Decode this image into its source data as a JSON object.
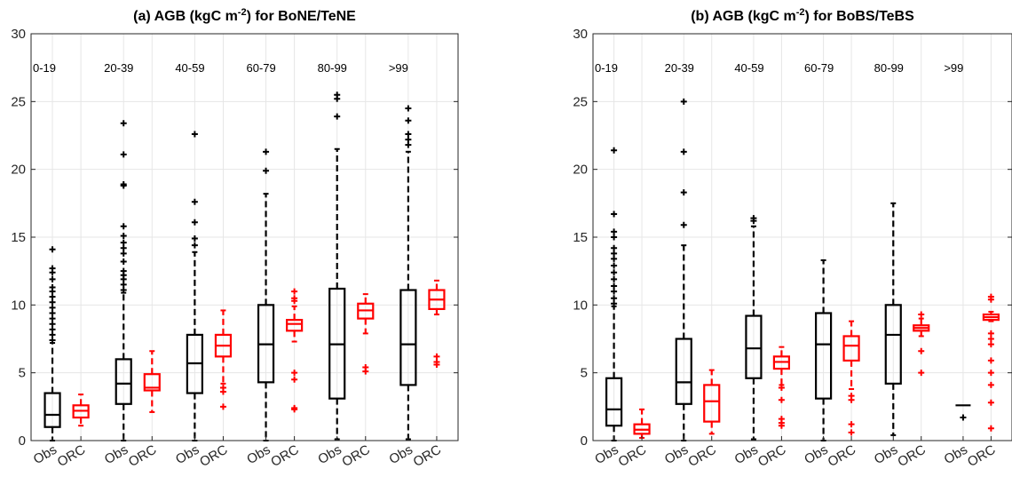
{
  "chart_data": [
    {
      "type": "box",
      "title": "(a) AGB (kgC m-2) for BoNE/TeNE",
      "title_parts": {
        "pre": "(a) AGB (kgC m",
        "sup": "-2",
        "post": ") for BoNE/TeNE"
      },
      "ylim": [
        0,
        30
      ],
      "yticks": [
        0,
        5,
        10,
        15,
        20,
        25,
        30
      ],
      "groups": [
        "0-19",
        "20-39",
        "40-59",
        "60-79",
        "80-99",
        ">99"
      ],
      "series_labels": [
        "Obs",
        "ORC"
      ],
      "grid": true,
      "colors": {
        "Obs": "#000000",
        "ORC": "#ff0000"
      },
      "boxes": [
        {
          "group": "0-19",
          "series": "Obs",
          "min": 0,
          "q1": 1.0,
          "median": 1.9,
          "q3": 3.5,
          "max": 7.2,
          "outliers": [
            7.4,
            7.8,
            8.2,
            8.6,
            9.0,
            9.4,
            9.8,
            10.2,
            10.6,
            11.0,
            11.3,
            11.9,
            12.4,
            12.7,
            14.1
          ]
        },
        {
          "group": "0-19",
          "series": "ORC",
          "min": 1.1,
          "q1": 1.7,
          "median": 2.2,
          "q3": 2.6,
          "max": 3.4,
          "outliers": []
        },
        {
          "group": "20-39",
          "series": "Obs",
          "min": 0,
          "q1": 2.7,
          "median": 4.2,
          "q3": 6.0,
          "max": 10.9,
          "outliers": [
            11.1,
            11.5,
            11.9,
            12.2,
            12.5,
            13.2,
            13.8,
            14.2,
            14.6,
            15.1,
            15.8,
            18.8,
            18.9,
            21.1,
            23.4
          ]
        },
        {
          "group": "20-39",
          "series": "ORC",
          "min": 2.1,
          "q1": 3.7,
          "median": 3.9,
          "q3": 4.9,
          "max": 6.6,
          "outliers": []
        },
        {
          "group": "40-59",
          "series": "Obs",
          "min": 0,
          "q1": 3.5,
          "median": 5.7,
          "q3": 7.8,
          "max": 13.9,
          "outliers": [
            14.4,
            14.9,
            16.1,
            17.6,
            22.6
          ]
        },
        {
          "group": "40-59",
          "series": "ORC",
          "min": 4.2,
          "q1": 6.2,
          "median": 7.0,
          "q3": 7.8,
          "max": 9.6,
          "outliers": [
            2.5,
            3.6,
            3.9
          ]
        },
        {
          "group": "60-79",
          "series": "Obs",
          "min": 0,
          "q1": 4.3,
          "median": 7.1,
          "q3": 10.0,
          "max": 18.2,
          "outliers": [
            19.9,
            21.3
          ]
        },
        {
          "group": "60-79",
          "series": "ORC",
          "min": 7.3,
          "q1": 8.1,
          "median": 8.6,
          "q3": 8.9,
          "max": 9.9,
          "outliers": [
            2.3,
            2.4,
            4.5,
            5.0,
            10.3,
            10.5,
            11.0
          ]
        },
        {
          "group": "80-99",
          "series": "Obs",
          "min": 0.1,
          "q1": 3.1,
          "median": 7.1,
          "q3": 11.2,
          "max": 21.5,
          "outliers": [
            23.9,
            25.2,
            25.5
          ]
        },
        {
          "group": "80-99",
          "series": "ORC",
          "min": 7.9,
          "q1": 9.0,
          "median": 9.6,
          "q3": 10.1,
          "max": 10.8,
          "outliers": [
            5.1,
            5.4
          ]
        },
        {
          "group": ">99",
          "series": "Obs",
          "min": 0.1,
          "q1": 4.1,
          "median": 7.1,
          "q3": 11.1,
          "max": 21.3,
          "outliers": [
            21.8,
            22.2,
            22.6,
            23.6,
            24.5
          ]
        },
        {
          "group": ">99",
          "series": "ORC",
          "min": 9.3,
          "q1": 9.7,
          "median": 10.4,
          "q3": 11.1,
          "max": 11.8,
          "outliers": [
            5.6,
            5.8,
            6.2
          ]
        }
      ]
    },
    {
      "type": "box",
      "title": "(b) AGB (kgC m-2) for BoBS/TeBS",
      "title_parts": {
        "pre": "(b) AGB (kgC m",
        "sup": "-2",
        "post": ") for BoBS/TeBS"
      },
      "ylim": [
        0,
        30
      ],
      "yticks": [
        0,
        5,
        10,
        15,
        20,
        25,
        30
      ],
      "groups": [
        "0-19",
        "20-39",
        "40-59",
        "60-79",
        "80-99",
        ">99"
      ],
      "series_labels": [
        "Obs",
        "ORC"
      ],
      "grid": true,
      "colors": {
        "Obs": "#000000",
        "ORC": "#ff0000"
      },
      "boxes": [
        {
          "group": "0-19",
          "series": "Obs",
          "min": 0,
          "q1": 1.1,
          "median": 2.3,
          "q3": 4.6,
          "max": 9.9,
          "outliers": [
            10.1,
            10.5,
            11.0,
            11.4,
            11.9,
            12.4,
            12.9,
            13.4,
            13.8,
            14.2,
            15.0,
            15.4,
            16.7,
            21.4
          ]
        },
        {
          "group": "0-19",
          "series": "ORC",
          "min": 0.2,
          "q1": 0.5,
          "median": 0.8,
          "q3": 1.2,
          "max": 2.3,
          "outliers": []
        },
        {
          "group": "20-39",
          "series": "Obs",
          "min": 0,
          "q1": 2.7,
          "median": 4.3,
          "q3": 7.5,
          "max": 14.4,
          "outliers": [
            15.9,
            18.3,
            21.3,
            25.0
          ]
        },
        {
          "group": "20-39",
          "series": "ORC",
          "min": 0.5,
          "q1": 1.4,
          "median": 2.9,
          "q3": 4.1,
          "max": 5.2,
          "outliers": []
        },
        {
          "group": "40-59",
          "series": "Obs",
          "min": 0.1,
          "q1": 4.6,
          "median": 6.8,
          "q3": 9.2,
          "max": 15.8,
          "outliers": [
            16.2,
            16.4
          ]
        },
        {
          "group": "40-59",
          "series": "ORC",
          "min": 4.1,
          "q1": 5.3,
          "median": 5.8,
          "q3": 6.2,
          "max": 6.9,
          "outliers": [
            1.1,
            1.3,
            1.6,
            3.0,
            3.9
          ]
        },
        {
          "group": "60-79",
          "series": "Obs",
          "min": 0,
          "q1": 3.1,
          "median": 7.1,
          "q3": 9.4,
          "max": 13.3,
          "outliers": []
        },
        {
          "group": "60-79",
          "series": "ORC",
          "min": 3.8,
          "q1": 5.9,
          "median": 7.0,
          "q3": 7.7,
          "max": 8.8,
          "outliers": [
            0.6,
            1.2,
            3.0,
            3.3
          ]
        },
        {
          "group": "80-99",
          "series": "Obs",
          "min": 0.4,
          "q1": 4.2,
          "median": 7.8,
          "q3": 10.0,
          "max": 17.5,
          "outliers": []
        },
        {
          "group": "80-99",
          "series": "ORC",
          "min": 7.7,
          "q1": 8.1,
          "median": 8.3,
          "q3": 8.5,
          "max": 9.0,
          "outliers": [
            5.0,
            6.6,
            9.3
          ]
        },
        {
          "group": ">99",
          "series": "Obs",
          "min": 2.6,
          "q1": 2.6,
          "median": 2.6,
          "q3": 2.6,
          "max": 2.6,
          "outliers": [
            1.7
          ]
        },
        {
          "group": ">99",
          "series": "ORC",
          "min": 8.8,
          "q1": 8.9,
          "median": 9.1,
          "q3": 9.3,
          "max": 9.5,
          "outliers": [
            0.9,
            2.8,
            4.1,
            5.0,
            5.9,
            7.1,
            7.5,
            7.9,
            10.4,
            10.6
          ]
        }
      ]
    }
  ]
}
